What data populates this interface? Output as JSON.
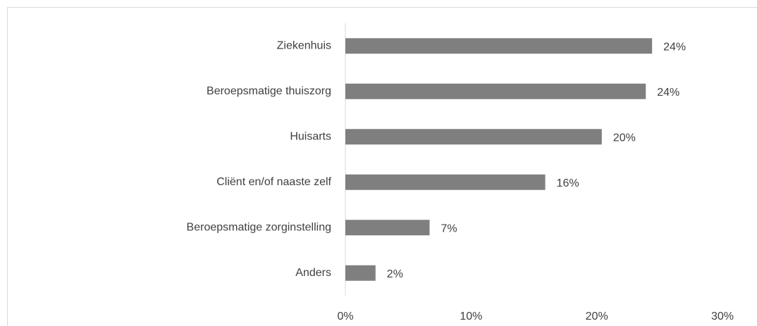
{
  "chart_data": {
    "type": "bar",
    "orientation": "horizontal",
    "categories": [
      "Ziekenhuis",
      "Beroepsmatige thuiszorg",
      "Huisarts",
      "Cliënt en/of naaste zelf",
      "Beroepsmatige zorginstelling",
      "Anders"
    ],
    "values": [
      24.4,
      23.9,
      20.4,
      15.9,
      6.7,
      2.4
    ],
    "value_labels": [
      "24%",
      "24%",
      "20%",
      "16%",
      "7%",
      "2%"
    ],
    "color": "#7f7f7f",
    "xlim": [
      0,
      30
    ],
    "xticks": [
      {
        "value": 0,
        "label": "0%"
      },
      {
        "value": 10,
        "label": "10%"
      },
      {
        "value": 20,
        "label": "20%"
      },
      {
        "value": 30,
        "label": "30%"
      }
    ],
    "grid": false
  }
}
